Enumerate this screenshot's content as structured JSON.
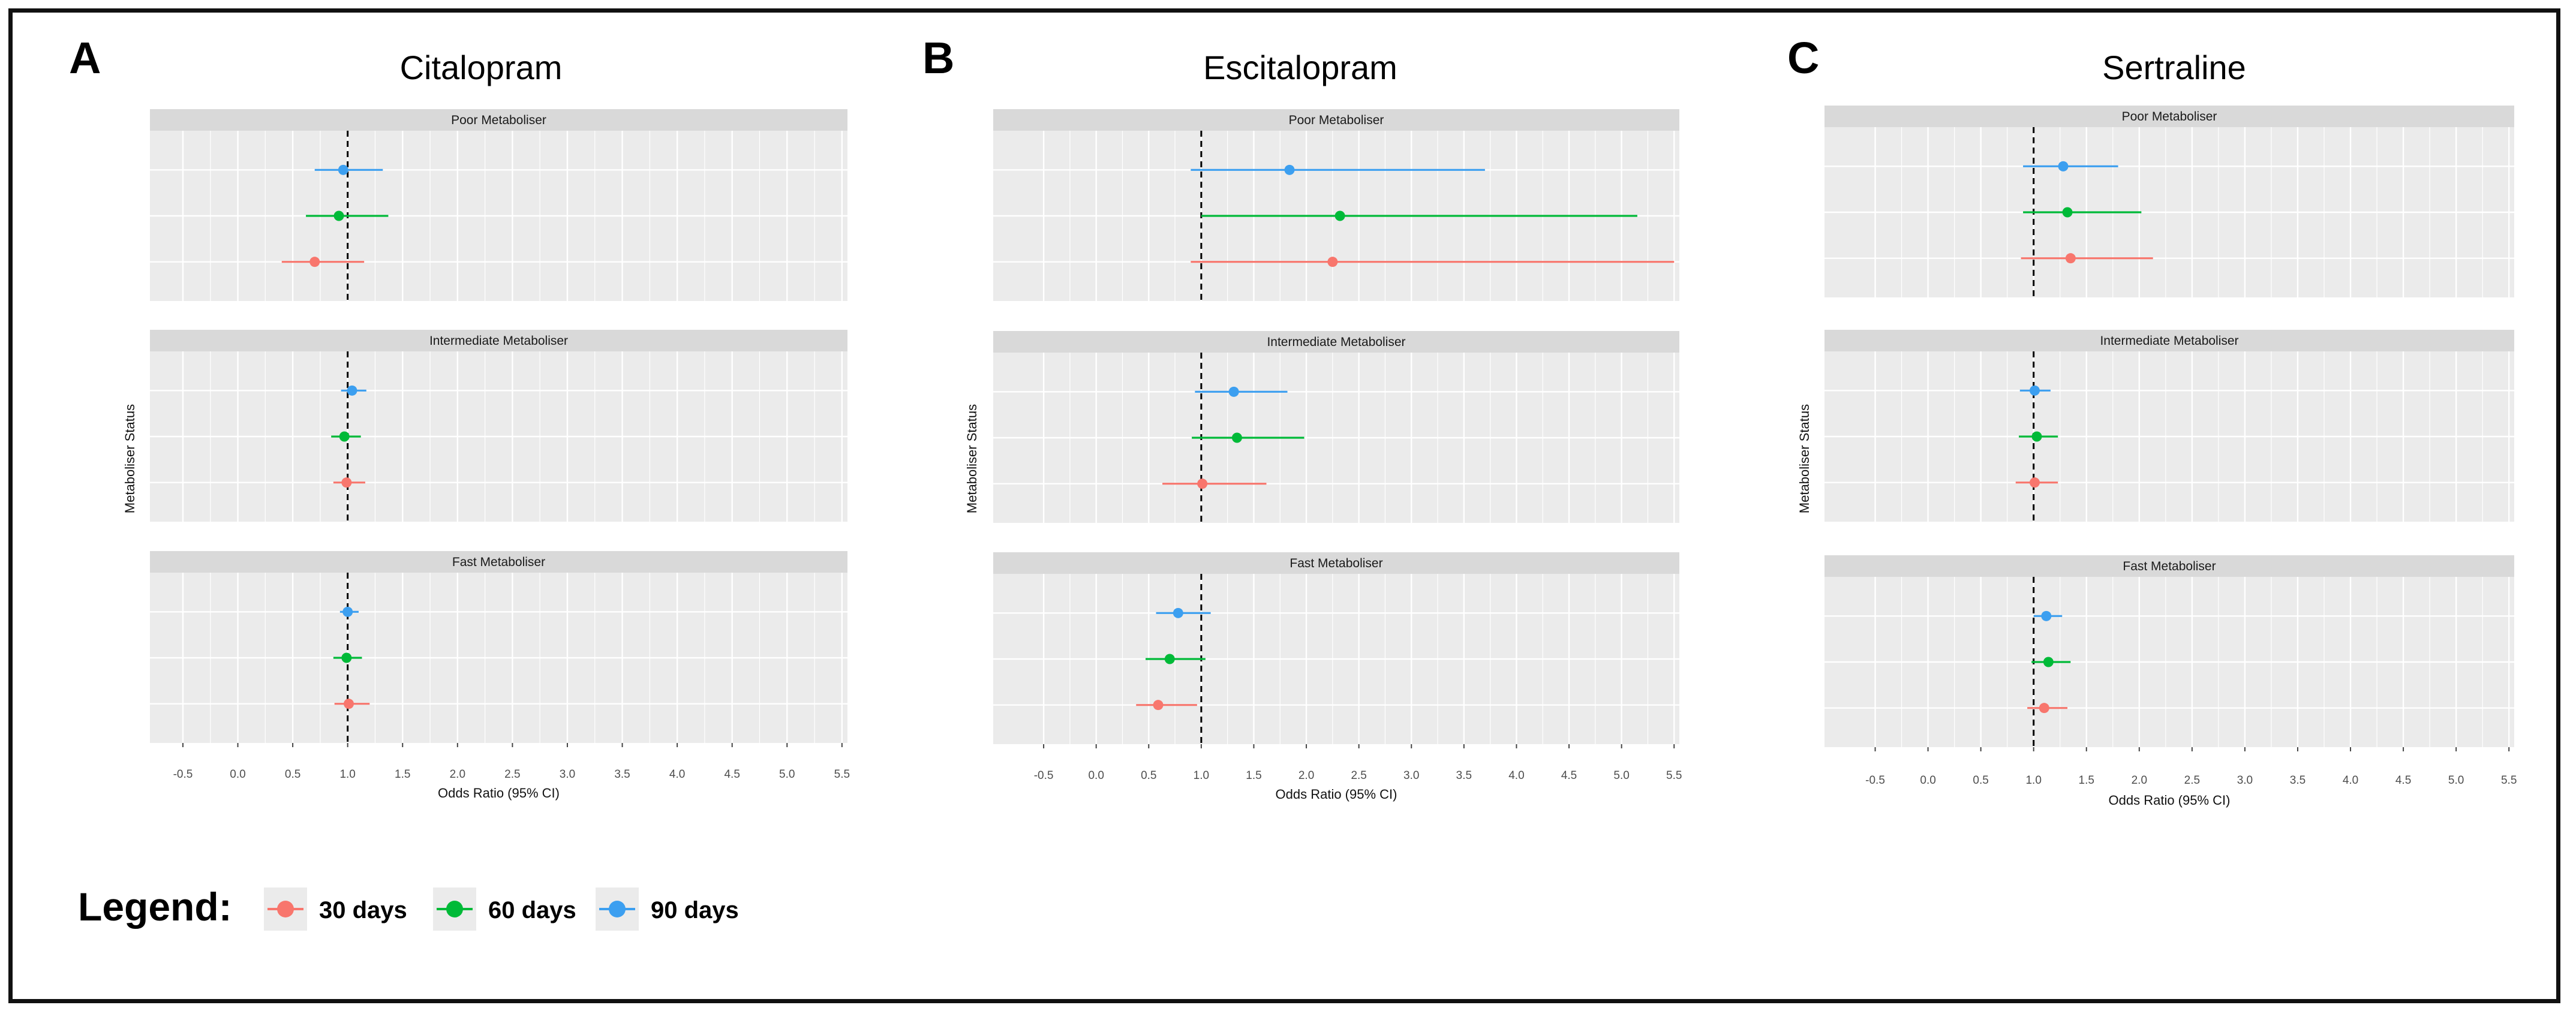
{
  "figure": {
    "legend_title": "Legend:",
    "legend_items": [
      {
        "label": "30 days",
        "color": "#F8766D"
      },
      {
        "label": "60 days",
        "color": "#00BA38"
      },
      {
        "label": "90 days",
        "color": "#3C9FF0"
      }
    ]
  },
  "chart_data": [
    {
      "type": "forest",
      "panel_label": "A",
      "title": "Citalopram",
      "xlabel": "Odds Ratio (95% CI)",
      "ylabel": "Metaboliser Status",
      "xlim": [
        -0.8,
        5.55
      ],
      "xticks": [
        "-0.5",
        "0.0",
        "0.5",
        "1.0",
        "1.5",
        "2.0",
        "2.5",
        "3.0",
        "3.5",
        "4.0",
        "4.5",
        "5.0",
        "5.5"
      ],
      "reference_line": 1.0,
      "facets": [
        {
          "name": "Poor Metaboliser",
          "series": [
            {
              "name": "30 days",
              "or": 0.7,
              "lo": 0.4,
              "hi": 1.15
            },
            {
              "name": "60 days",
              "or": 0.92,
              "lo": 0.62,
              "hi": 1.37
            },
            {
              "name": "90 days",
              "or": 0.96,
              "lo": 0.7,
              "hi": 1.32
            }
          ]
        },
        {
          "name": "Intermediate Metaboliser",
          "series": [
            {
              "name": "30 days",
              "or": 0.99,
              "lo": 0.87,
              "hi": 1.16
            },
            {
              "name": "60 days",
              "or": 0.97,
              "lo": 0.85,
              "hi": 1.12
            },
            {
              "name": "90 days",
              "or": 1.04,
              "lo": 0.94,
              "hi": 1.17
            }
          ]
        },
        {
          "name": "Fast Metaboliser",
          "series": [
            {
              "name": "30 days",
              "or": 1.01,
              "lo": 0.88,
              "hi": 1.2
            },
            {
              "name": "60 days",
              "or": 0.99,
              "lo": 0.87,
              "hi": 1.13
            },
            {
              "name": "90 days",
              "or": 1.0,
              "lo": 0.93,
              "hi": 1.1
            }
          ]
        }
      ]
    },
    {
      "type": "forest",
      "panel_label": "B",
      "title": "Escitalopram",
      "xlabel": "Odds Ratio (95% CI)",
      "ylabel": "Metaboliser Status",
      "xlim": [
        -0.98,
        5.55
      ],
      "xticks": [
        "-0.5",
        "0.0",
        "0.5",
        "1.0",
        "1.5",
        "2.0",
        "2.5",
        "3.0",
        "3.5",
        "4.0",
        "4.5",
        "5.0",
        "5.5"
      ],
      "reference_line": 1.0,
      "facets": [
        {
          "name": "Poor Metaboliser",
          "series": [
            {
              "name": "30 days",
              "or": 2.25,
              "lo": 0.9,
              "hi": 5.5
            },
            {
              "name": "60 days",
              "or": 2.32,
              "lo": 1.0,
              "hi": 5.15
            },
            {
              "name": "90 days",
              "or": 1.84,
              "lo": 0.9,
              "hi": 3.7
            }
          ]
        },
        {
          "name": "Intermediate Metaboliser",
          "series": [
            {
              "name": "30 days",
              "or": 1.01,
              "lo": 0.63,
              "hi": 1.62
            },
            {
              "name": "60 days",
              "or": 1.34,
              "lo": 0.91,
              "hi": 1.98
            },
            {
              "name": "90 days",
              "or": 1.31,
              "lo": 0.94,
              "hi": 1.82
            }
          ]
        },
        {
          "name": "Fast Metaboliser",
          "series": [
            {
              "name": "30 days",
              "or": 0.59,
              "lo": 0.38,
              "hi": 0.96
            },
            {
              "name": "60 days",
              "or": 0.7,
              "lo": 0.47,
              "hi": 1.04
            },
            {
              "name": "90 days",
              "or": 0.78,
              "lo": 0.57,
              "hi": 1.09
            }
          ]
        }
      ]
    },
    {
      "type": "forest",
      "panel_label": "C",
      "title": "Sertraline",
      "xlabel": "Odds Ratio (95% CI)",
      "ylabel": "Metaboliser Status",
      "xlim": [
        -0.98,
        5.55
      ],
      "xticks": [
        "-0.5",
        "0.0",
        "0.5",
        "1.0",
        "1.5",
        "2.0",
        "2.5",
        "3.0",
        "3.5",
        "4.0",
        "4.5",
        "5.0",
        "5.5"
      ],
      "reference_line": 1.0,
      "facets": [
        {
          "name": "Poor Metaboliser",
          "series": [
            {
              "name": "30 days",
              "or": 1.35,
              "lo": 0.88,
              "hi": 2.13
            },
            {
              "name": "60 days",
              "or": 1.32,
              "lo": 0.9,
              "hi": 2.02
            },
            {
              "name": "90 days",
              "or": 1.28,
              "lo": 0.9,
              "hi": 1.8
            }
          ]
        },
        {
          "name": "Intermediate Metaboliser",
          "series": [
            {
              "name": "30 days",
              "or": 1.01,
              "lo": 0.83,
              "hi": 1.23
            },
            {
              "name": "60 days",
              "or": 1.03,
              "lo": 0.86,
              "hi": 1.23
            },
            {
              "name": "90 days",
              "or": 1.01,
              "lo": 0.87,
              "hi": 1.16
            }
          ]
        },
        {
          "name": "Fast Metaboliser",
          "series": [
            {
              "name": "30 days",
              "or": 1.1,
              "lo": 0.94,
              "hi": 1.32
            },
            {
              "name": "60 days",
              "or": 1.14,
              "lo": 0.98,
              "hi": 1.35
            },
            {
              "name": "90 days",
              "or": 1.12,
              "lo": 1.0,
              "hi": 1.27
            }
          ]
        }
      ]
    }
  ]
}
